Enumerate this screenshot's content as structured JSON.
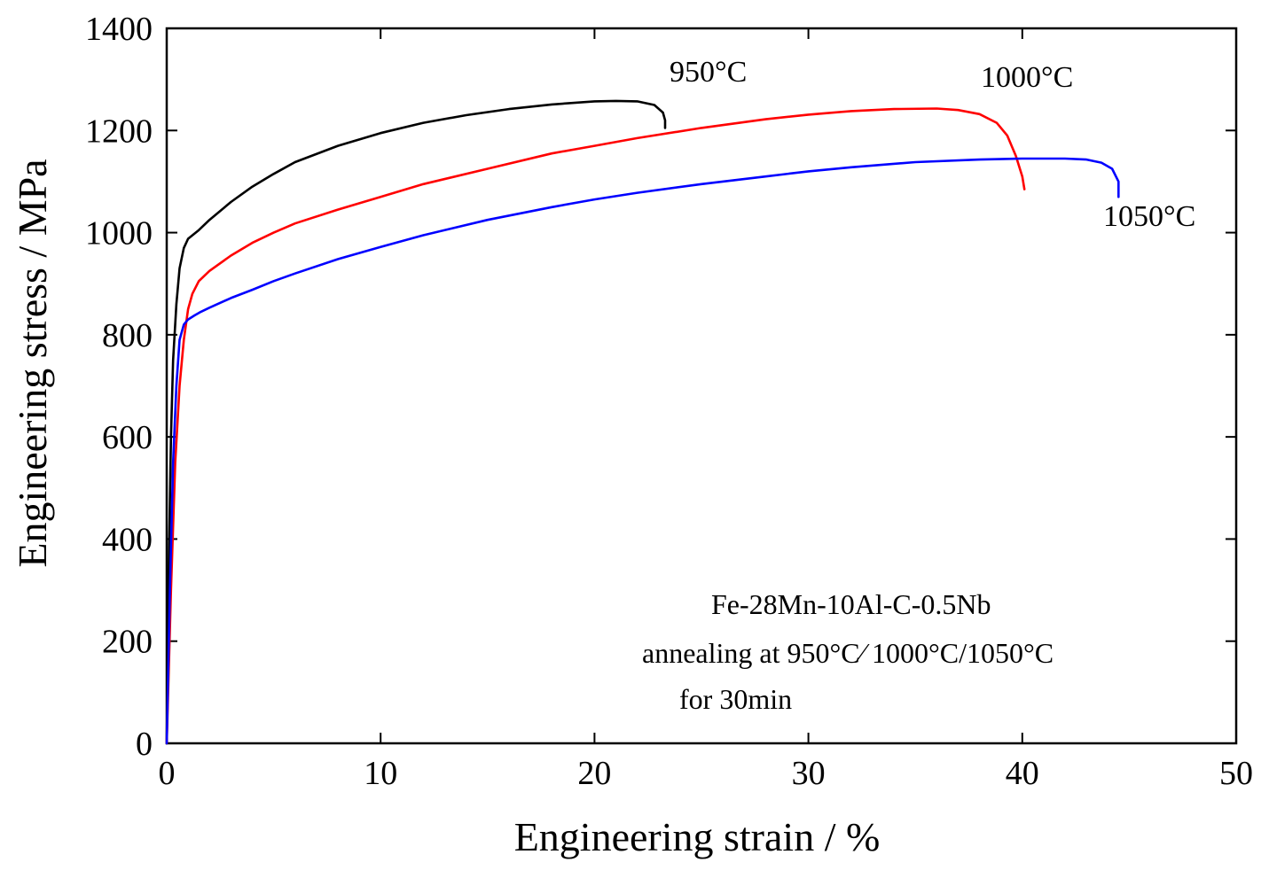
{
  "chart_data": {
    "type": "line",
    "title": "",
    "xlabel": "Engineering strain / %",
    "ylabel": "Engineering stress / MPa",
    "xlim": [
      0,
      50
    ],
    "ylim": [
      0,
      1400
    ],
    "xticks": [
      0,
      10,
      20,
      30,
      40,
      50
    ],
    "yticks": [
      0,
      200,
      400,
      600,
      800,
      1000,
      1200,
      1400
    ],
    "grid": false,
    "series": [
      {
        "name": "950°C",
        "color": "#000000",
        "x": [
          0,
          0.1,
          0.2,
          0.3,
          0.45,
          0.6,
          0.8,
          1.0,
          1.5,
          2.0,
          3.0,
          4.0,
          5.0,
          6.0,
          8.0,
          10.0,
          12.0,
          14.0,
          16.0,
          18.0,
          20.0,
          21.0,
          22.0,
          22.8,
          23.2,
          23.3,
          23.3
        ],
        "y": [
          0,
          350,
          600,
          750,
          860,
          930,
          970,
          988,
          1005,
          1025,
          1060,
          1090,
          1115,
          1138,
          1170,
          1195,
          1215,
          1230,
          1242,
          1251,
          1257,
          1258,
          1257,
          1250,
          1235,
          1220,
          1205
        ]
      },
      {
        "name": "1000°C",
        "color": "#ff0000",
        "x": [
          0,
          0.2,
          0.4,
          0.6,
          0.8,
          1.0,
          1.2,
          1.5,
          2.0,
          3.0,
          4.0,
          5.0,
          6.0,
          8.0,
          10.0,
          12.0,
          15.0,
          18.0,
          20.0,
          22.0,
          25.0,
          28.0,
          30.0,
          32.0,
          34.0,
          36.0,
          37.0,
          38.0,
          38.8,
          39.3,
          39.7,
          40.0,
          40.1
        ],
        "y": [
          0,
          300,
          550,
          700,
          790,
          850,
          880,
          905,
          925,
          955,
          980,
          1000,
          1018,
          1045,
          1070,
          1095,
          1125,
          1155,
          1170,
          1185,
          1205,
          1222,
          1231,
          1238,
          1242,
          1243,
          1240,
          1232,
          1215,
          1190,
          1150,
          1110,
          1085
        ]
      },
      {
        "name": "1050°C",
        "color": "#0000ff",
        "x": [
          0,
          0.15,
          0.3,
          0.45,
          0.6,
          0.8,
          1.0,
          1.3,
          1.6,
          2.0,
          3.0,
          4.0,
          5.0,
          6.0,
          8.0,
          10.0,
          12.0,
          15.0,
          18.0,
          20.0,
          22.0,
          25.0,
          28.0,
          30.0,
          32.0,
          35.0,
          38.0,
          40.0,
          42.0,
          43.0,
          43.7,
          44.2,
          44.5,
          44.5
        ],
        "y": [
          0,
          300,
          550,
          700,
          790,
          820,
          830,
          838,
          845,
          853,
          872,
          888,
          905,
          920,
          948,
          972,
          995,
          1025,
          1050,
          1065,
          1078,
          1095,
          1110,
          1120,
          1128,
          1138,
          1143,
          1145,
          1145,
          1143,
          1137,
          1125,
          1100,
          1070
        ]
      }
    ],
    "curve_labels": [
      "950°C",
      "1000°C",
      "1050°C"
    ],
    "annotation": {
      "line1": "Fe-28Mn-10Al-C-0.5Nb",
      "line2": "annealing at 950°C⁄ 1000°C/1050°C",
      "line3": "for 30min"
    }
  }
}
